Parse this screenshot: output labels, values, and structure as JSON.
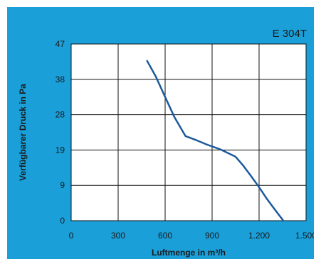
{
  "chart_data": {
    "type": "line",
    "title": "E 304T",
    "xlabel": "Luftmenge in m³/h",
    "ylabel": "Verfügbarer Druck in Pa",
    "xlim": [
      0,
      1500
    ],
    "ylim": [
      0,
      47
    ],
    "x_ticks": [
      {
        "value": 0,
        "label": "0"
      },
      {
        "value": 300,
        "label": "300"
      },
      {
        "value": 600,
        "label": "600"
      },
      {
        "value": 900,
        "label": "900"
      },
      {
        "value": 1200,
        "label": "1.200"
      },
      {
        "value": 1500,
        "label": "1.500"
      }
    ],
    "y_ticks": [
      {
        "value": 0,
        "label": "0"
      },
      {
        "value": 9.4,
        "label": "9"
      },
      {
        "value": 18.8,
        "label": "19"
      },
      {
        "value": 28.2,
        "label": "28"
      },
      {
        "value": 37.6,
        "label": "38"
      },
      {
        "value": 47,
        "label": "47"
      }
    ],
    "grid": true,
    "line_color": "#1c5a9a",
    "background_color": "#1a9fd8",
    "plot_background": "#ffffff",
    "series": [
      {
        "x": [
          485,
          540,
          600,
          660,
          730,
          800,
          870,
          950,
          1050,
          1100,
          1150,
          1200,
          1250,
          1300,
          1355
        ],
        "y": [
          42.5,
          38.4,
          32.9,
          27.5,
          22.5,
          21.4,
          20.2,
          19.0,
          17.0,
          14.6,
          11.8,
          8.9,
          5.8,
          3.0,
          0
        ]
      }
    ]
  }
}
